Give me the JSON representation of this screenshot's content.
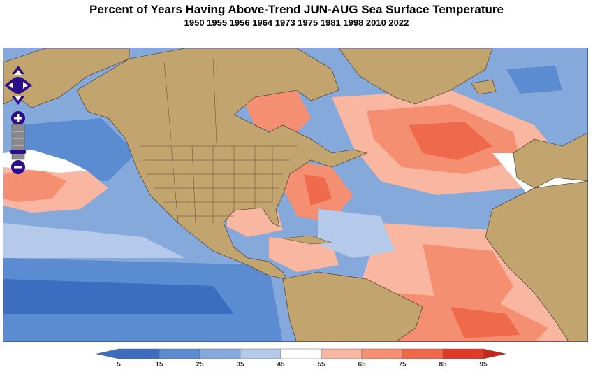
{
  "header": {
    "title": "Percent of Years Having Above-Trend JUN-AUG Sea Surface Temperature",
    "subtitle": "1950 1955 1956 1964 1973 1975 1981 1998 2010 2022"
  },
  "colorbar": {
    "ticks": [
      "5",
      "15",
      "25",
      "35",
      "45",
      "55",
      "65",
      "75",
      "85",
      "95"
    ],
    "colors": [
      "#3d6dbf",
      "#5b8bd0",
      "#86a9dc",
      "#b5caea",
      "#ffffff",
      "#f9b6a0",
      "#f58f72",
      "#ee6a4b",
      "#de3a28"
    ]
  },
  "map_controls": {
    "pan": "pan-control",
    "zoom_in": "+",
    "zoom_out": "−"
  },
  "colors": {
    "land": "#c2a56e",
    "ocean_base": "#7aa2d8",
    "control": "#2c0d8c"
  }
}
